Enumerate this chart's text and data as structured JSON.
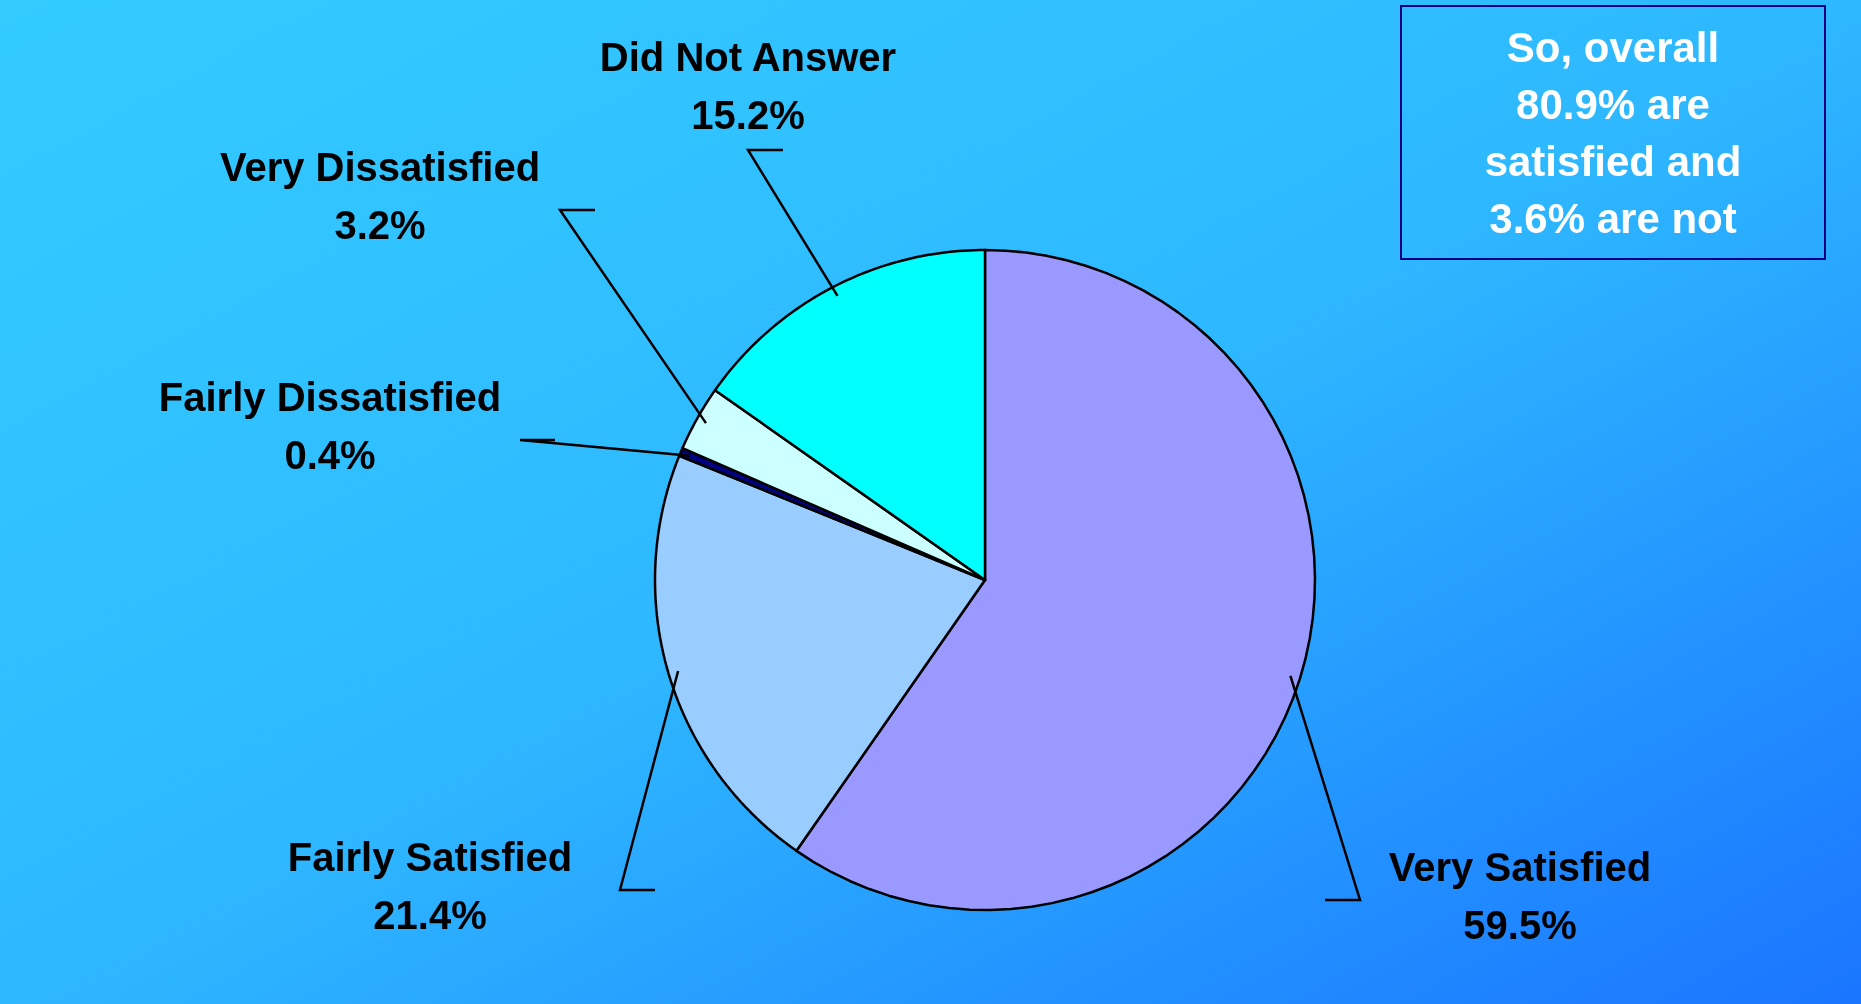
{
  "chart_data": {
    "type": "pie",
    "categories": [
      "Very Satisfied",
      "Fairly Satisfied",
      "Fairly Dissatisfied",
      "Very Dissatisfied",
      "Did Not Answer"
    ],
    "values": [
      59.5,
      21.4,
      0.4,
      3.2,
      15.2
    ],
    "value_labels": [
      "59.5%",
      "21.4%",
      "0.4%",
      "3.2%",
      "15.2%"
    ],
    "colors": [
      "#9999ff",
      "#99ccff",
      "#000080",
      "#ccffff",
      "#00ffff"
    ],
    "annotations": [
      "So, overall 80.9% are satisfied and 3.6% are not"
    ],
    "legend": false
  }
}
